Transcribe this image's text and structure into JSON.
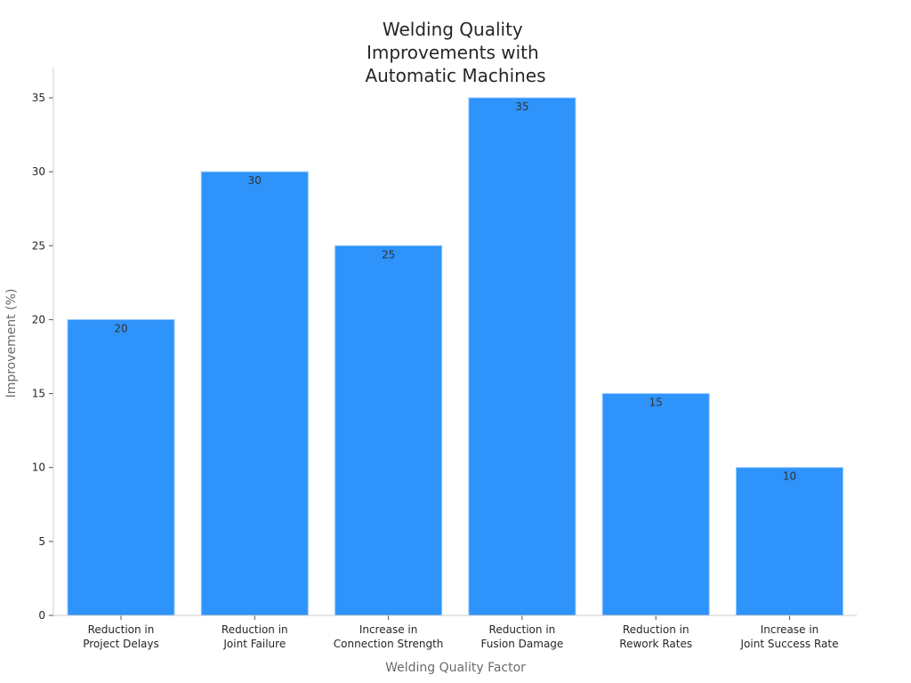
{
  "chart_data": {
    "type": "bar",
    "title_lines": [
      "Welding Quality",
      "Improvements with",
      "Automatic Machines"
    ],
    "xlabel": "Welding Quality Factor",
    "ylabel": "Improvement (%)",
    "ylim": [
      0,
      37
    ],
    "yticks": [
      0,
      5,
      10,
      15,
      20,
      25,
      30,
      35
    ],
    "categories": [
      [
        "Reduction in",
        "Project Delays"
      ],
      [
        "Reduction in",
        "Joint Failure"
      ],
      [
        "Increase in",
        "Connection Strength"
      ],
      [
        "Reduction in",
        "Fusion Damage"
      ],
      [
        "Reduction in",
        "Rework Rates"
      ],
      [
        "Increase in",
        "Joint Success Rate"
      ]
    ],
    "values": [
      20,
      30,
      25,
      35,
      15,
      10
    ],
    "data_labels": [
      "20",
      "30",
      "25",
      "35",
      "15",
      "10"
    ],
    "grid": false,
    "legend": "none",
    "colors": {
      "bar": "#2e93fa",
      "bar_edge": "#8fc6ff",
      "axis": "#cccccc"
    }
  }
}
